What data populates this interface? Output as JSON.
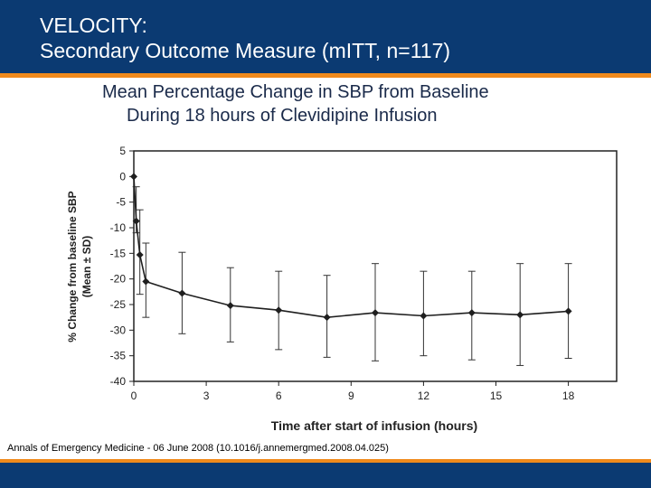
{
  "header": {
    "title_line1": "VELOCITY:",
    "title_line2": "Secondary Outcome Measure (mITT, n=117)"
  },
  "chart_data": {
    "type": "line",
    "title_line1": "Mean Percentage Change in SBP from Baseline",
    "title_line2": "During 18 hours of Clevidipine Infusion",
    "xlabel": "Time after start of infusion (hours)",
    "ylabel_line1": "% Change from baseline SBP",
    "ylabel_line2": "(Mean ± SD)",
    "xlim": [
      0,
      20
    ],
    "ylim": [
      -40,
      5
    ],
    "xticks": [
      0,
      3,
      6,
      9,
      12,
      15,
      18
    ],
    "yticks": [
      5,
      0,
      -5,
      -10,
      -15,
      -20,
      -25,
      -30,
      -35,
      -40
    ],
    "grid": false,
    "series": [
      {
        "name": "Mean % change in SBP",
        "points": [
          {
            "x": 0,
            "y": 0,
            "low": 0,
            "high": 0
          },
          {
            "x": 0.1,
            "y": -8.7,
            "low": -11,
            "high": -2
          },
          {
            "x": 0.25,
            "y": -15.3,
            "low": -23,
            "high": -6.5
          },
          {
            "x": 0.5,
            "y": -20.5,
            "low": -27.5,
            "high": -13
          },
          {
            "x": 2,
            "y": -22.8,
            "low": -30.7,
            "high": -14.8
          },
          {
            "x": 4,
            "y": -25.2,
            "low": -32.3,
            "high": -17.8
          },
          {
            "x": 6,
            "y": -26.1,
            "low": -33.8,
            "high": -18.5
          },
          {
            "x": 8,
            "y": -27.5,
            "low": -35.3,
            "high": -19.3
          },
          {
            "x": 10,
            "y": -26.6,
            "low": -36,
            "high": -17
          },
          {
            "x": 12,
            "y": -27.2,
            "low": -35,
            "high": -18.5
          },
          {
            "x": 14,
            "y": -26.6,
            "low": -35.8,
            "high": -18.5
          },
          {
            "x": 16,
            "y": -27,
            "low": -36.9,
            "high": -17
          },
          {
            "x": 18,
            "y": -26.3,
            "low": -35.5,
            "high": -17
          }
        ]
      }
    ]
  },
  "footer": {
    "citation": "Annals of Emergency Medicine - 06 June 2008 (10.1016/j.annemergmed.2008.04.025)"
  },
  "colors": {
    "header_bg": "#0b3a72",
    "accent": "#f08a1c",
    "series": "#1f1f1f"
  }
}
